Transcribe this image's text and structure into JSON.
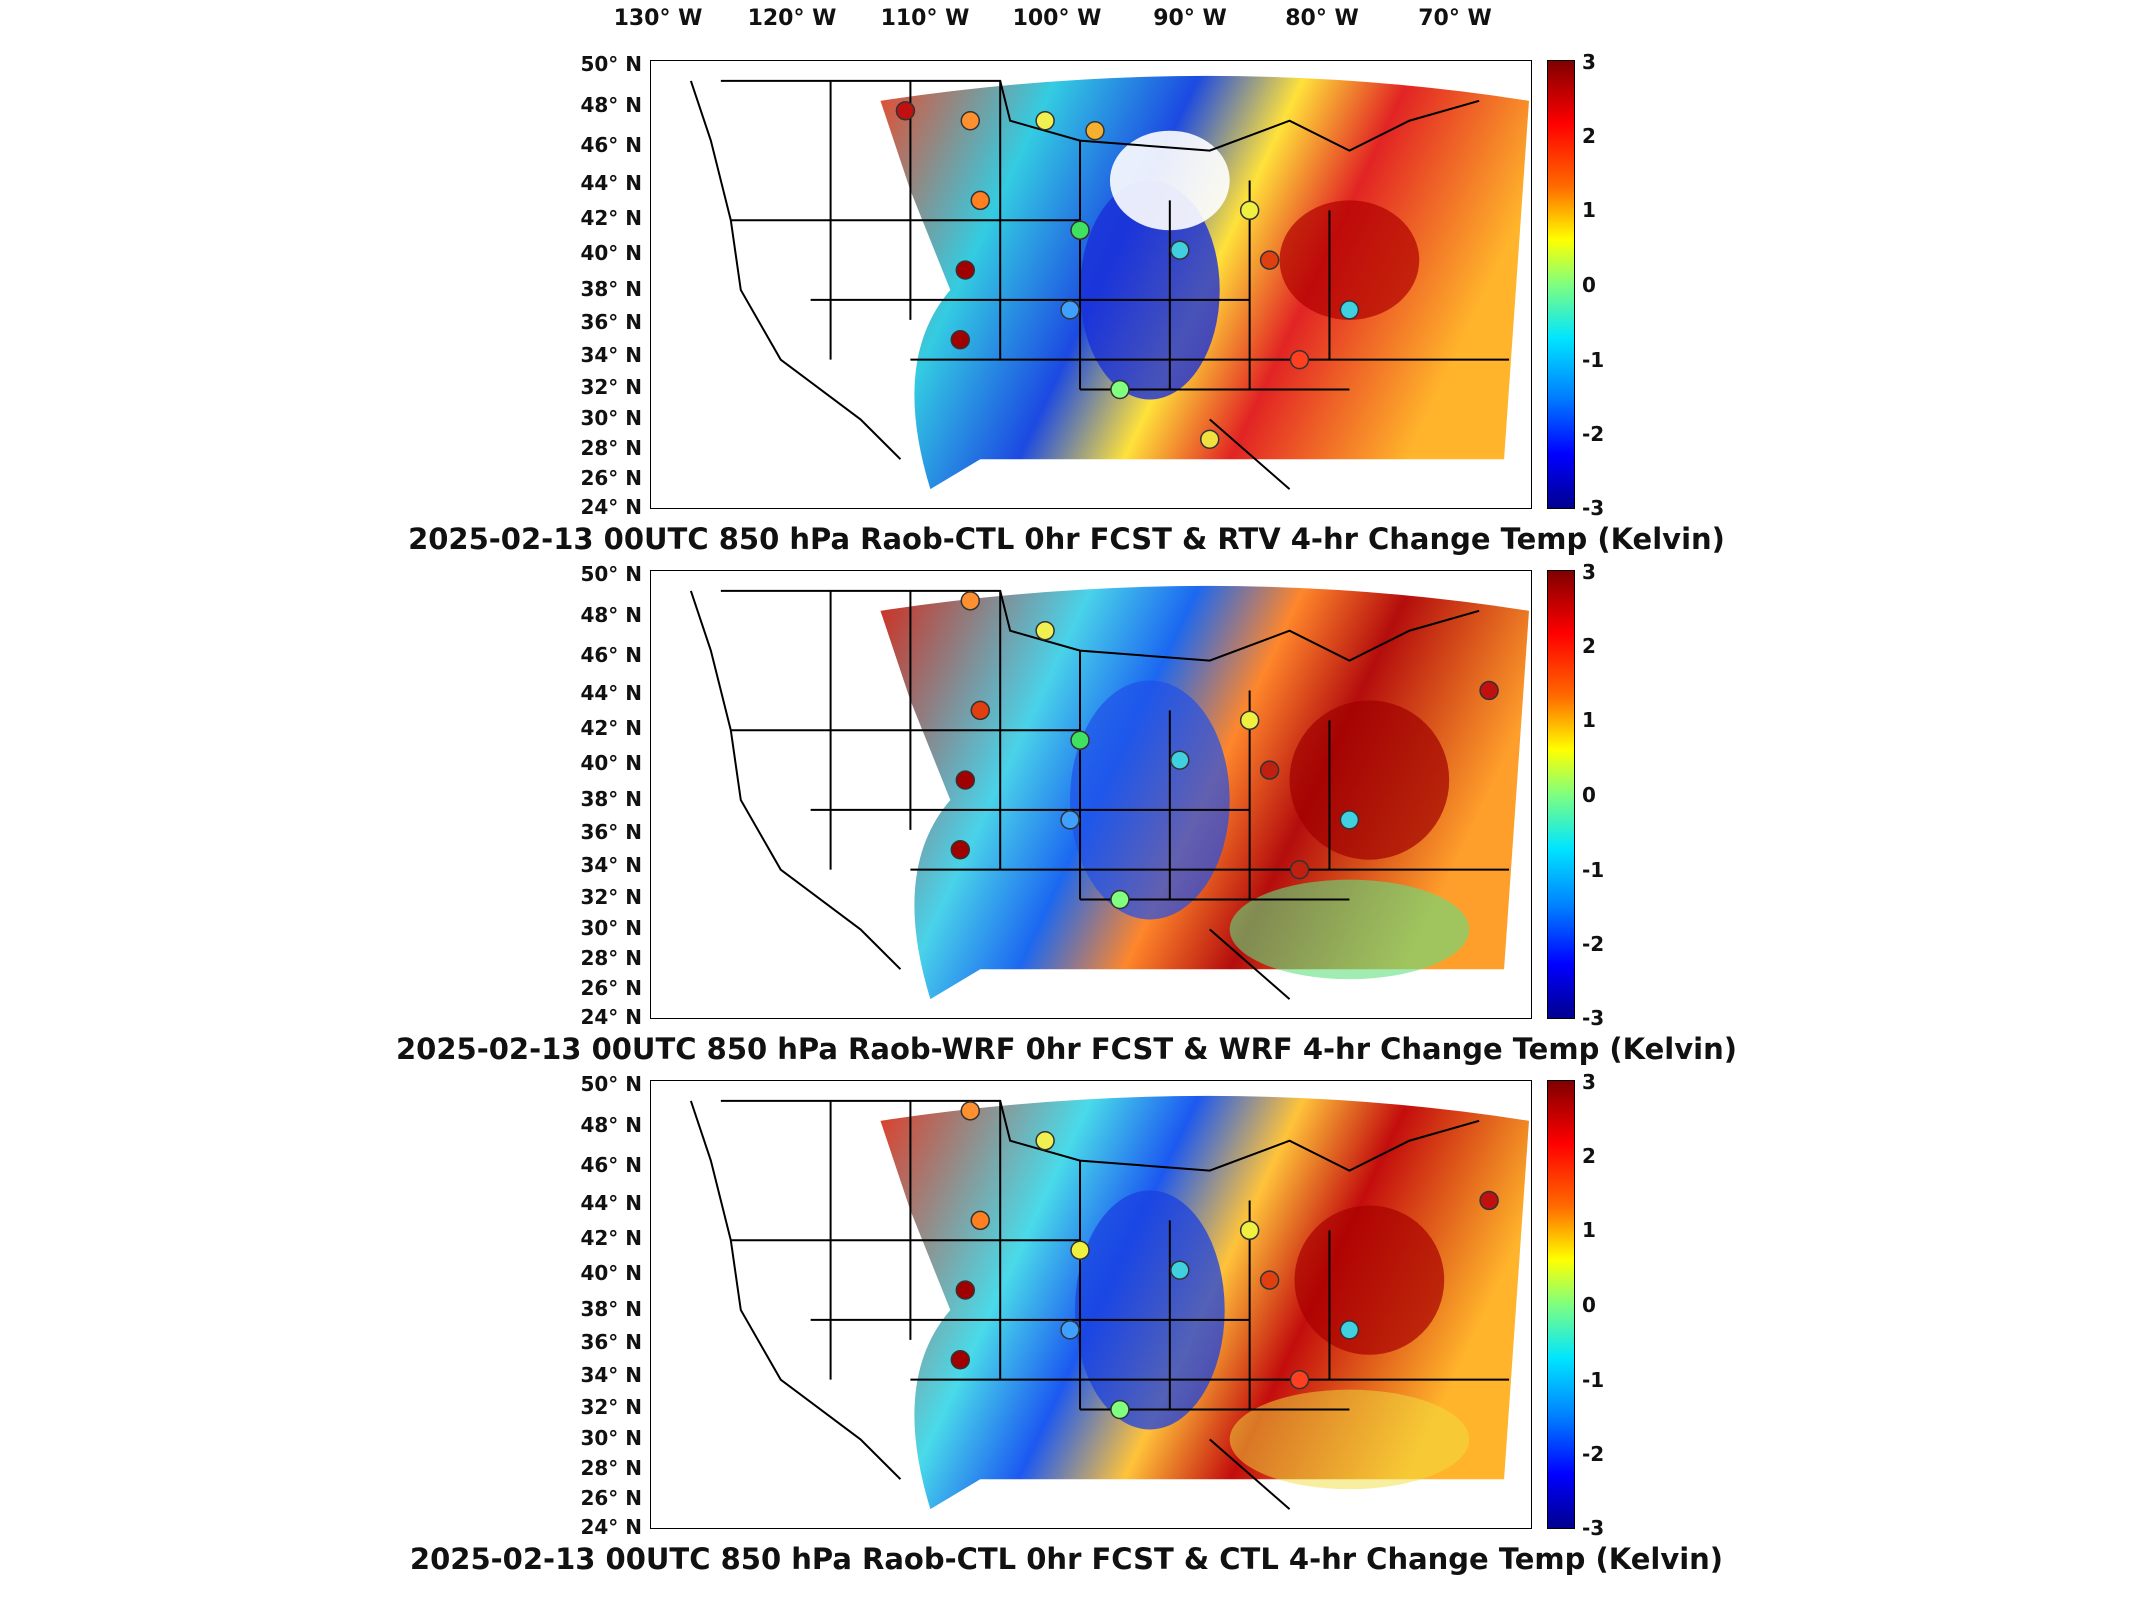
{
  "lon_labels": [
    "130° W",
    "120° W",
    "110° W",
    "100° W",
    "90° W",
    "80° W",
    "70° W"
  ],
  "lat_labels": [
    "50° N",
    "48° N",
    "46° N",
    "44° N",
    "42° N",
    "40° N",
    "38° N",
    "36° N",
    "34° N",
    "32° N",
    "30° N",
    "28° N",
    "26° N",
    "24° N"
  ],
  "colorbar": {
    "ticks": [
      "3",
      "2",
      "1",
      "0",
      "-1",
      "-2",
      "-3"
    ],
    "colors": [
      "#800000",
      "#ff0000",
      "#ff6a00",
      "#ffff00",
      "#7fff7f",
      "#00e5ff",
      "#0080ff",
      "#0000ff",
      "#00008f"
    ]
  },
  "panels": [
    {
      "title": "2025-02-13 00UTC 850 hPa Raob-CTL 0hr FCST & RTV 4-hr Change Temp (Kelvin)"
    },
    {
      "title": "2025-02-13 00UTC 850 hPa Raob-WRF 0hr FCST & WRF 4-hr Change Temp (Kelvin)"
    },
    {
      "title": "2025-02-13 00UTC 850 hPa Raob-CTL 0hr FCST & CTL 4-hr Change Temp (Kelvin)"
    }
  ]
}
